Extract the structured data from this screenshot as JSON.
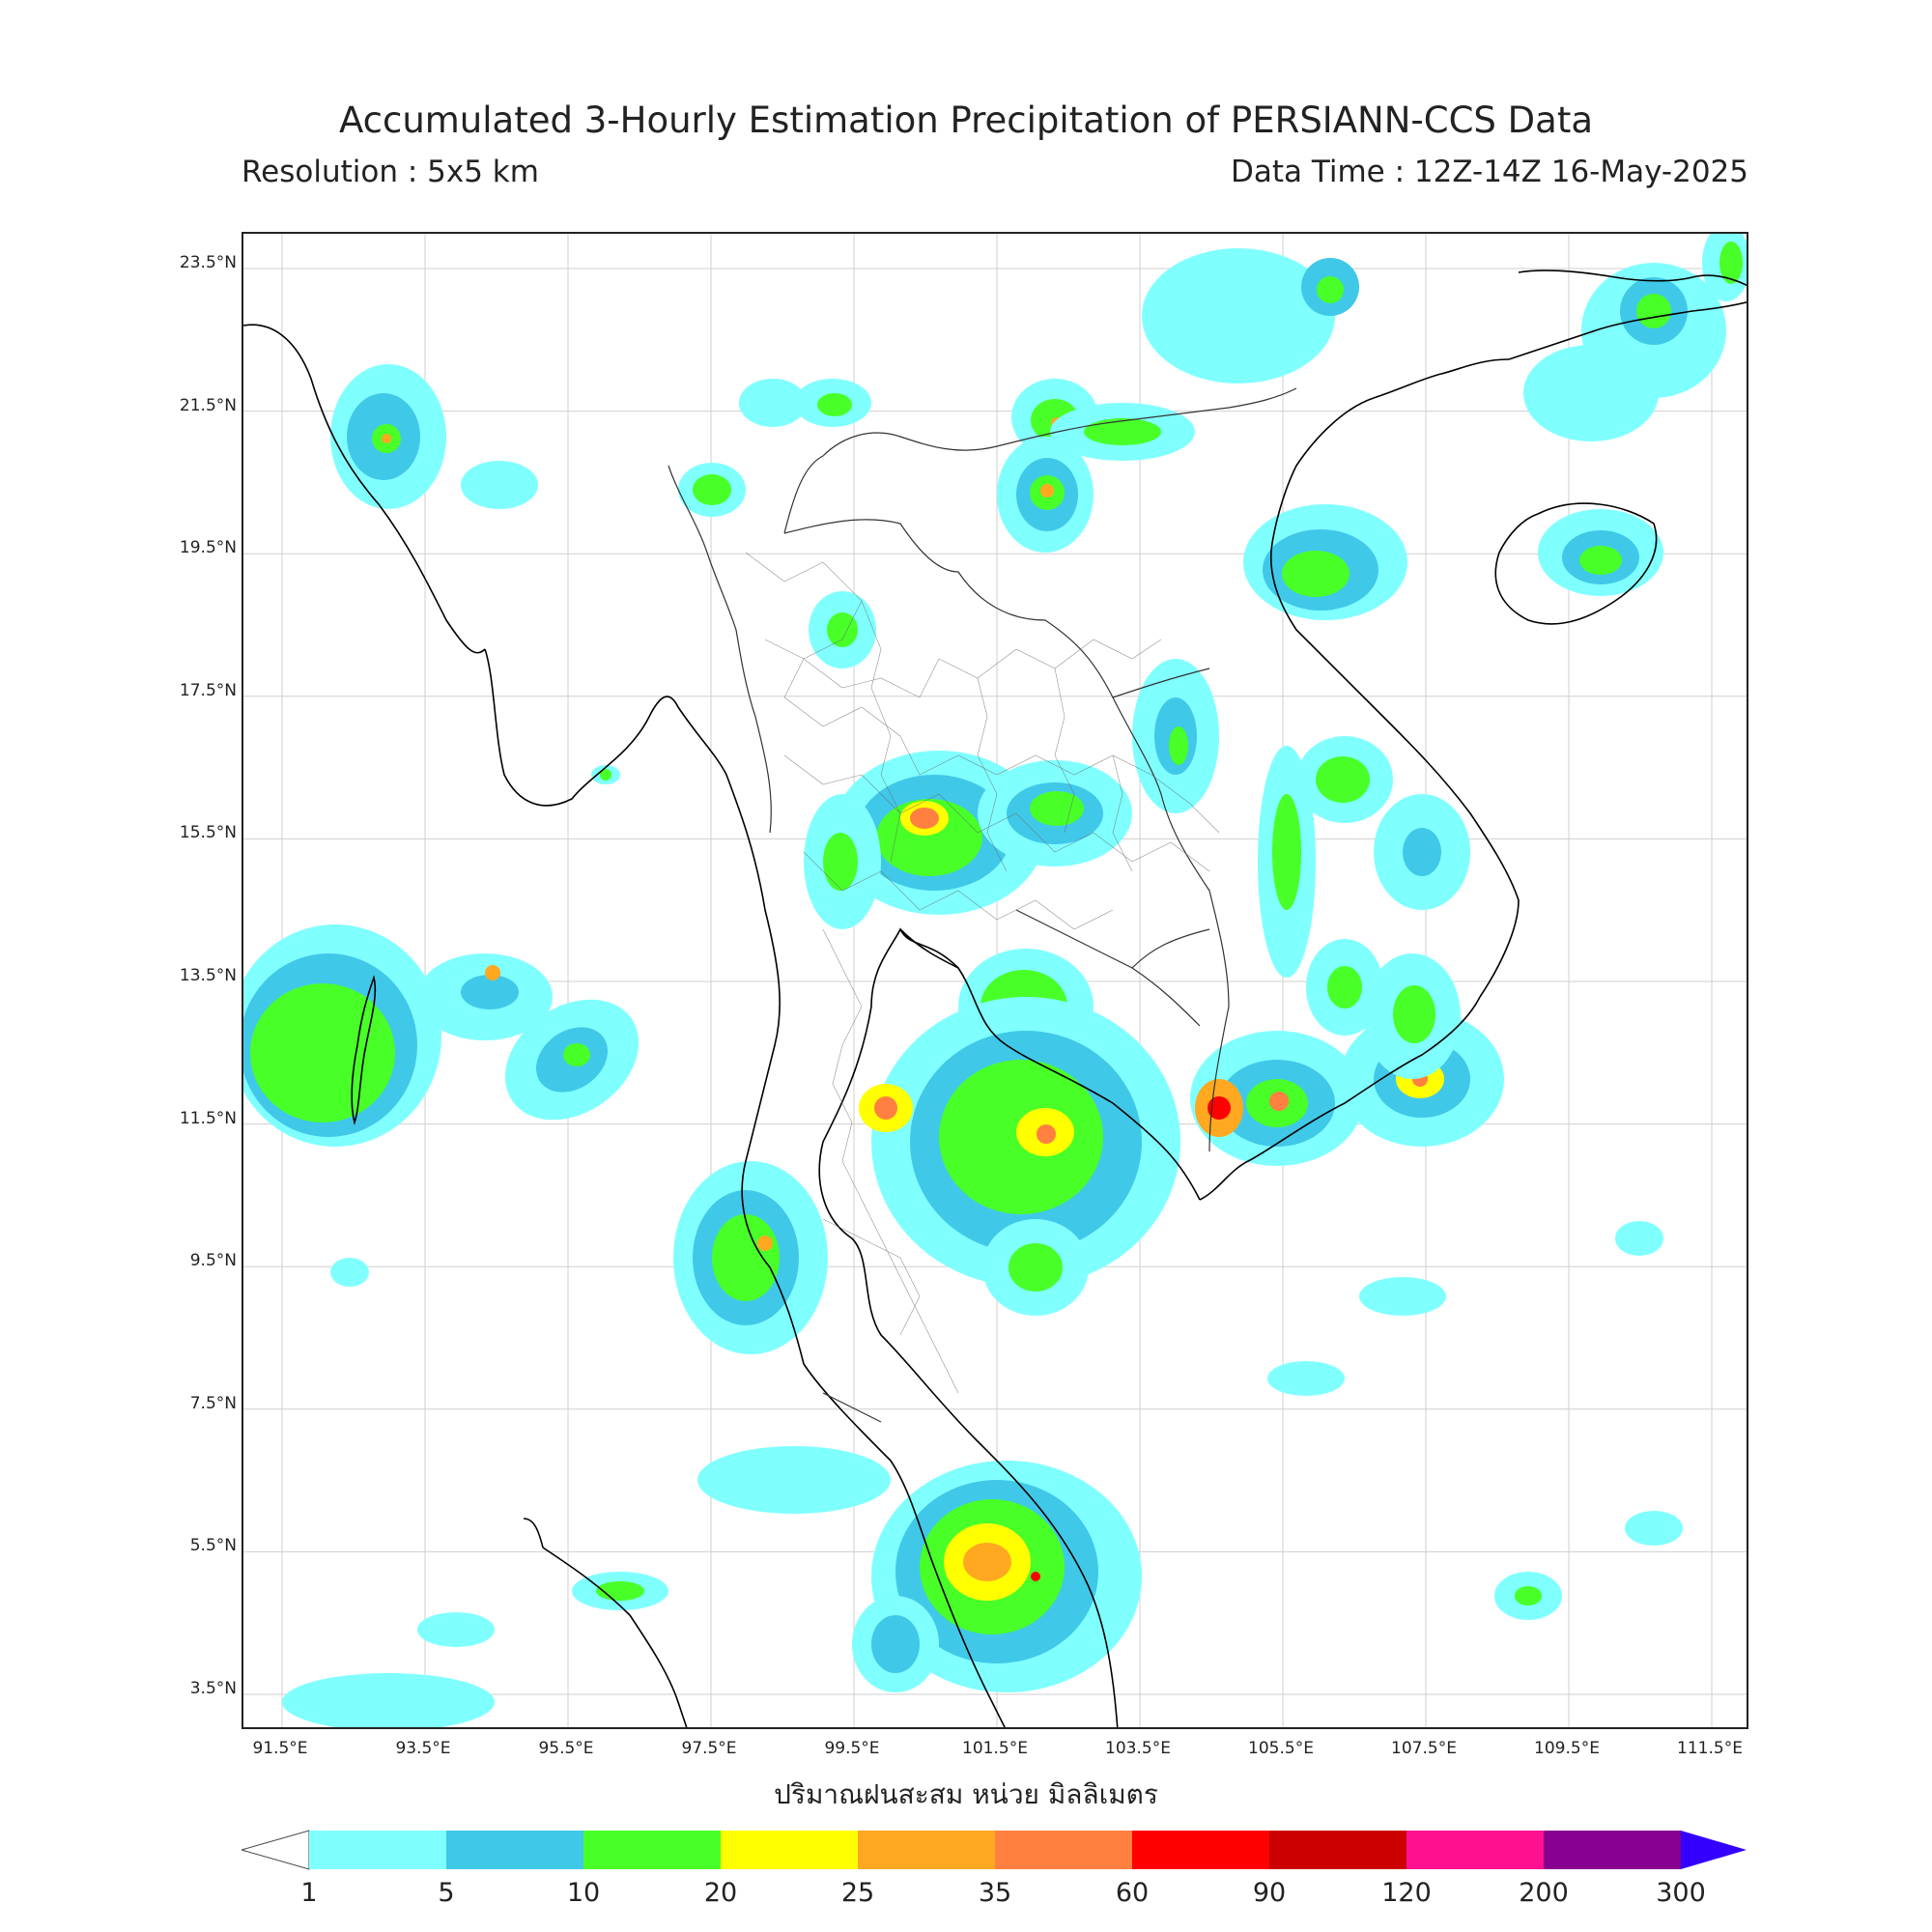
{
  "title": "Accumulated 3-Hourly Estimation Precipitation of PERSIANN-CCS Data",
  "resolution": "Resolution : 5x5 km",
  "data_time": "Data Time : 12Z-14Z 16-May-2025",
  "x_axis_title": "ปริมาณฝนสะสม หน่วย มิลลิเมตร",
  "lat_labels": [
    "23.5°N",
    "21.5°N",
    "19.5°N",
    "17.5°N",
    "15.5°N",
    "13.5°N",
    "11.5°N",
    "9.5°N",
    "7.5°N",
    "5.5°N",
    "3.5°N"
  ],
  "lon_labels": [
    "91.5°E",
    "93.5°E",
    "95.5°E",
    "97.5°E",
    "99.5°E",
    "101.5°E",
    "103.5°E",
    "105.5°E",
    "107.5°E",
    "109.5°E",
    "111.5°E"
  ],
  "colorbar": {
    "labels": [
      "1",
      "5",
      "10",
      "20",
      "25",
      "35",
      "60",
      "90",
      "120",
      "200",
      "300"
    ],
    "colors": [
      "#80ffff",
      "#40c8e8",
      "#48ff28",
      "#ffff00",
      "#ffa820",
      "#ff8040",
      "#ff0000",
      "#cc0000",
      "#ff1090",
      "#880090"
    ],
    "under_color": "#ffffff",
    "over_color": "#3300ff"
  }
}
